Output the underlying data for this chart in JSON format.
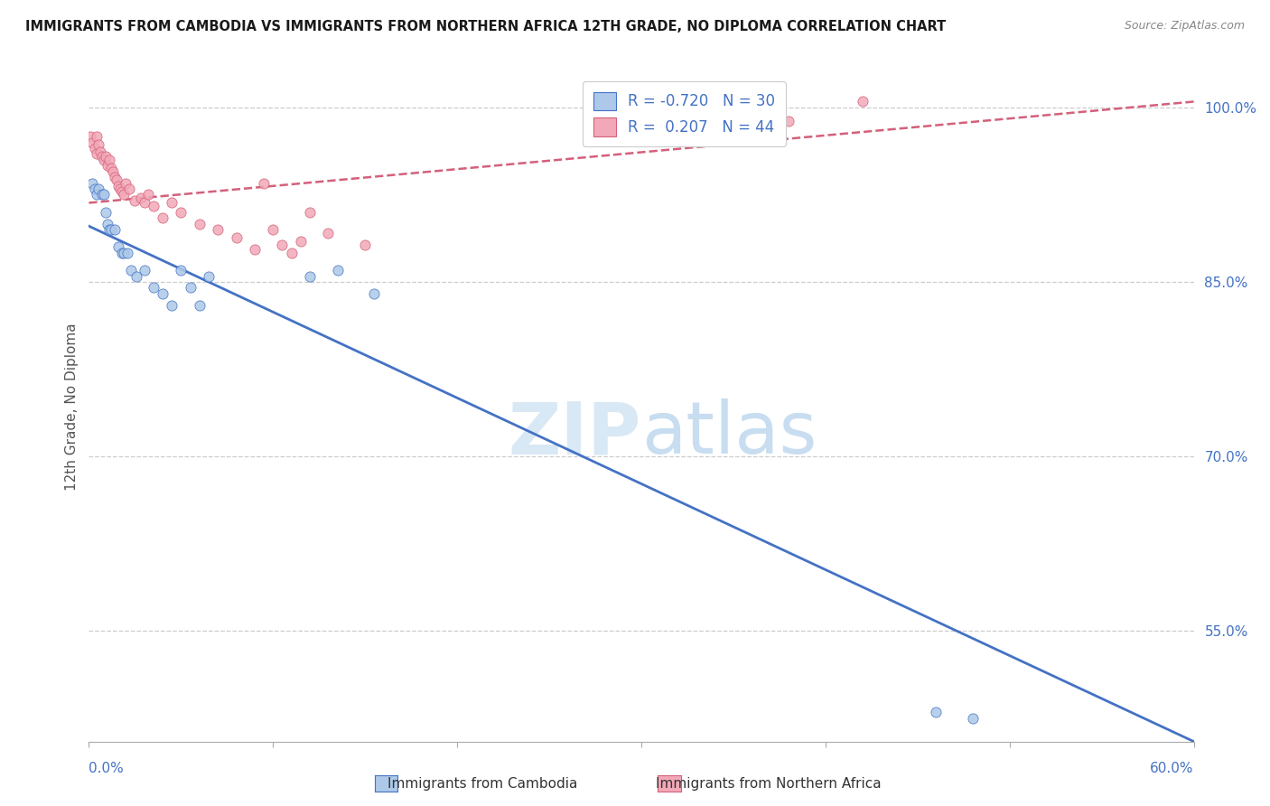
{
  "title": "IMMIGRANTS FROM CAMBODIA VS IMMIGRANTS FROM NORTHERN AFRICA 12TH GRADE, NO DIPLOMA CORRELATION CHART",
  "source": "Source: ZipAtlas.com",
  "ylabel": "12th Grade, No Diploma",
  "right_yticks": [
    55.0,
    70.0,
    85.0,
    100.0
  ],
  "r_cambodia": -0.72,
  "n_cambodia": 30,
  "r_n_africa": 0.207,
  "n_n_africa": 44,
  "color_cambodia": "#adc8e8",
  "color_n_africa": "#f2a8b8",
  "line_color_cambodia": "#4472c4",
  "line_color_n_africa": "#d4607a",
  "watermark_zip": "#d8e8f5",
  "watermark_atlas": "#c8ddf0",
  "cambodia_points_x": [
    0.002,
    0.003,
    0.004,
    0.005,
    0.007,
    0.008,
    0.009,
    0.01,
    0.011,
    0.012,
    0.014,
    0.016,
    0.018,
    0.019,
    0.021,
    0.023,
    0.026,
    0.03,
    0.035,
    0.04,
    0.045,
    0.05,
    0.055,
    0.06,
    0.065,
    0.12,
    0.135,
    0.155,
    0.46,
    0.48
  ],
  "cambodia_points_y": [
    0.935,
    0.93,
    0.925,
    0.93,
    0.925,
    0.925,
    0.91,
    0.9,
    0.895,
    0.895,
    0.895,
    0.88,
    0.875,
    0.875,
    0.875,
    0.86,
    0.855,
    0.86,
    0.845,
    0.84,
    0.83,
    0.86,
    0.845,
    0.83,
    0.855,
    0.855,
    0.86,
    0.84,
    0.48,
    0.475
  ],
  "n_africa_points_x": [
    0.001,
    0.002,
    0.003,
    0.004,
    0.004,
    0.005,
    0.006,
    0.007,
    0.008,
    0.009,
    0.01,
    0.011,
    0.012,
    0.013,
    0.014,
    0.015,
    0.016,
    0.017,
    0.018,
    0.019,
    0.02,
    0.022,
    0.025,
    0.028,
    0.03,
    0.032,
    0.035,
    0.04,
    0.045,
    0.05,
    0.06,
    0.07,
    0.08,
    0.09,
    0.095,
    0.1,
    0.105,
    0.11,
    0.115,
    0.12,
    0.13,
    0.15,
    0.38,
    0.42
  ],
  "n_africa_points_y": [
    0.975,
    0.97,
    0.965,
    0.975,
    0.96,
    0.968,
    0.962,
    0.958,
    0.955,
    0.958,
    0.95,
    0.955,
    0.948,
    0.945,
    0.94,
    0.938,
    0.932,
    0.93,
    0.928,
    0.925,
    0.935,
    0.93,
    0.92,
    0.922,
    0.918,
    0.925,
    0.915,
    0.905,
    0.918,
    0.91,
    0.9,
    0.895,
    0.888,
    0.878,
    0.935,
    0.895,
    0.882,
    0.875,
    0.885,
    0.91,
    0.892,
    0.882,
    0.988,
    1.005
  ],
  "xmin": 0.0,
  "xmax": 0.6,
  "ymin": 0.455,
  "ymax": 1.03,
  "cam_trendline_x0": 0.0,
  "cam_trendline_x1": 0.6,
  "cam_trendline_y0": 0.898,
  "cam_trendline_y1": 0.455,
  "afr_trendline_x0": 0.0,
  "afr_trendline_x1": 0.6,
  "afr_trendline_y0": 0.918,
  "afr_trendline_y1": 1.005
}
